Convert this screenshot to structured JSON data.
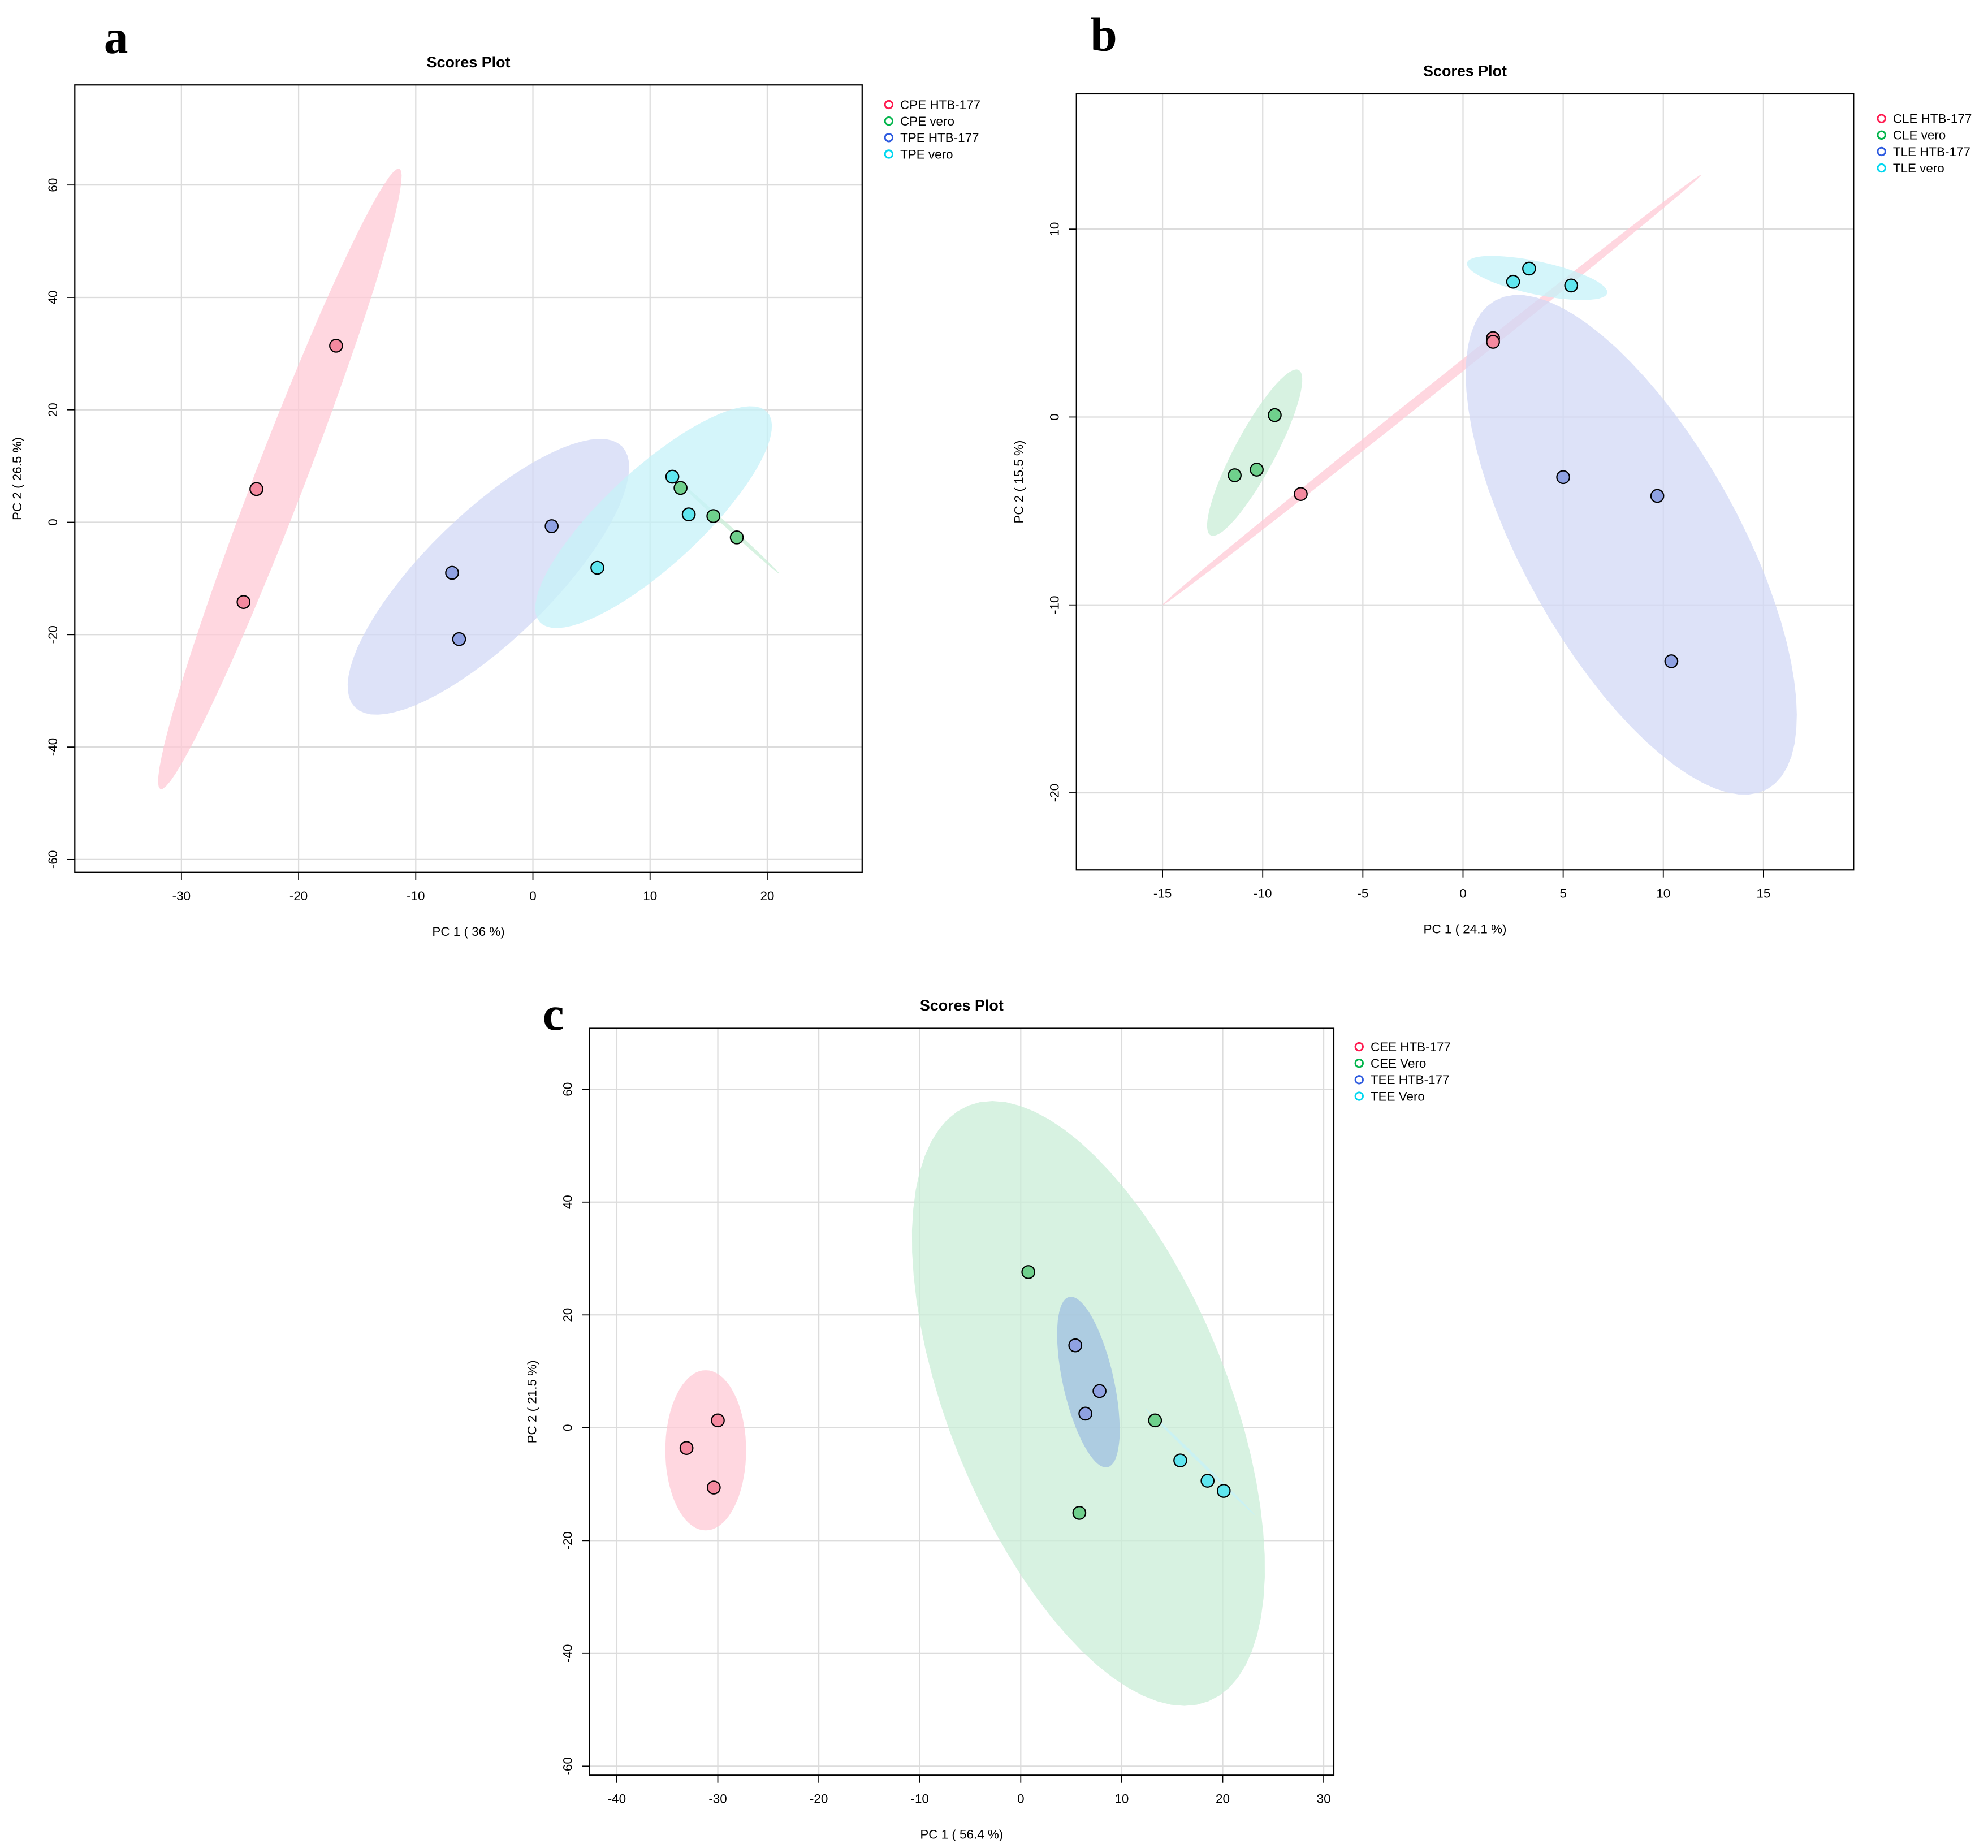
{
  "chart_data": [
    {
      "type": "scatter",
      "panel": "a",
      "title": "Scores Plot",
      "xlabel": "PC 1 ( 36 %)",
      "ylabel": "PC 2 ( 26.5 %)",
      "xlim": [
        -39.1,
        28.1
      ],
      "ylim": [
        -62.3,
        77.8
      ],
      "xticks": [
        -30,
        -20,
        -10,
        0,
        10,
        20
      ],
      "yticks": [
        -60,
        -40,
        -20,
        0,
        20,
        40,
        60
      ],
      "grid": true,
      "legend_position": "right",
      "series": [
        {
          "name": "CPE HTB-177",
          "color": "#ff1a4f",
          "fill": "#f4899f",
          "ellipse_fill": "#ffc9d5",
          "points": [
            [
              -16.8,
              31.4
            ],
            [
              -23.6,
              5.9
            ],
            [
              -24.7,
              -14.2
            ]
          ],
          "ellipse": {
            "center": [
              -21.6,
              7.7
            ],
            "u": [
              10.2,
              55.2
            ],
            "v": [
              2.0,
              -1.6
            ]
          }
        },
        {
          "name": "CPE vero",
          "color": "#00b44a",
          "fill": "#6fd08c",
          "ellipse_fill": "#c9eed7",
          "points": [
            [
              12.6,
              6.1
            ],
            [
              15.4,
              1.1
            ],
            [
              17.4,
              -2.7
            ]
          ],
          "ellipse": {
            "center": [
              16.5,
              -0.5
            ],
            "u": [
              4.5,
              -8.6
            ],
            "v": [
              0.2,
              0.1
            ]
          }
        },
        {
          "name": "TPE HTB-177",
          "color": "#2e5be0",
          "fill": "#8fa1e2",
          "ellipse_fill": "#d2d8f6",
          "points": [
            [
              1.6,
              -0.7
            ],
            [
              -6.9,
              -9.0
            ],
            [
              -6.3,
              -20.8
            ]
          ],
          "ellipse": {
            "center": [
              -3.8,
              -9.7
            ],
            "u": [
              11.4,
              23.2
            ],
            "v": [
              3.8,
              -8.0
            ]
          }
        },
        {
          "name": "TPE vero",
          "color": "#00d7f0",
          "fill": "#5fe6ef",
          "ellipse_fill": "#c6f1f8",
          "points": [
            [
              11.9,
              8.1
            ],
            [
              13.3,
              1.4
            ],
            [
              5.5,
              -8.1
            ]
          ],
          "ellipse": {
            "center": [
              10.3,
              0.9
            ],
            "u": [
              9.7,
              18.7
            ],
            "v": [
              2.8,
              -6.3
            ]
          }
        }
      ]
    },
    {
      "type": "scatter",
      "panel": "b",
      "title": "Scores Plot",
      "xlabel": "PC 1 ( 24.1 %)",
      "ylabel": "PC 2 ( 15.5 %)",
      "xlim": [
        -19.3,
        19.5
      ],
      "ylim": [
        -24.1,
        17.2
      ],
      "xticks": [
        -15,
        -10,
        -5,
        0,
        5,
        10,
        15
      ],
      "yticks": [
        -20,
        -10,
        0,
        10
      ],
      "grid": true,
      "legend_position": "right",
      "series": [
        {
          "name": "CLE HTB-177",
          "color": "#ff1a4f",
          "fill": "#f4899f",
          "ellipse_fill": "#ffc9d5",
          "points": [
            [
              1.5,
              4.2
            ],
            [
              1.5,
              4.0
            ],
            [
              -8.1,
              -4.1
            ]
          ],
          "ellipse": {
            "center": [
              -1.55,
              1.45
            ],
            "u": [
              13.45,
              11.45
            ],
            "v": [
              0.15,
              -0.2
            ]
          }
        },
        {
          "name": "CLE vero",
          "color": "#00b44a",
          "fill": "#6fd08c",
          "ellipse_fill": "#c9eed7",
          "points": [
            [
              -9.4,
              0.1
            ],
            [
              -11.4,
              -3.1
            ],
            [
              -10.3,
              -2.8
            ]
          ],
          "ellipse": {
            "center": [
              -10.4,
              -1.9
            ],
            "u": [
              2.2,
              4.4
            ],
            "v": [
              0.9,
              -0.5
            ]
          }
        },
        {
          "name": "TLE HTB-177",
          "color": "#2e5be0",
          "fill": "#8fa1e2",
          "ellipse_fill": "#d2d8f6",
          "points": [
            [
              5.0,
              -3.2
            ],
            [
              9.7,
              -4.2
            ],
            [
              10.4,
              -13.0
            ]
          ],
          "ellipse": {
            "center": [
              8.4,
              -6.8
            ],
            "u": [
              6.8,
              -13.0
            ],
            "v": [
              4.7,
              2.8
            ]
          }
        },
        {
          "name": "TLE vero",
          "color": "#00d7f0",
          "fill": "#5fe6ef",
          "ellipse_fill": "#c6f1f8",
          "points": [
            [
              2.5,
              7.2
            ],
            [
              3.3,
              7.9
            ],
            [
              5.4,
              7.0
            ]
          ],
          "ellipse": {
            "center": [
              3.7,
              7.4
            ],
            "u": [
              3.5,
              -0.8
            ],
            "v": [
              -0.17,
              -0.86
            ]
          }
        }
      ]
    },
    {
      "type": "scatter",
      "panel": "c",
      "title": "Scores Plot",
      "xlabel": "PC 1 ( 56.4 %)",
      "ylabel": "PC 2 ( 21.5 %)",
      "xlim": [
        -42.7,
        31.0
      ],
      "ylim": [
        -61.6,
        70.8
      ],
      "xticks": [
        -40,
        -30,
        -20,
        -10,
        0,
        10,
        20,
        30
      ],
      "yticks": [
        -60,
        -40,
        -20,
        0,
        20,
        40,
        60
      ],
      "grid": true,
      "legend_position": "right",
      "series": [
        {
          "name": "CEE HTB-177",
          "color": "#ff1a4f",
          "fill": "#f4899f",
          "ellipse_fill": "#ffc9d5",
          "points": [
            [
              -30.0,
              1.3
            ],
            [
              -33.1,
              -3.6
            ],
            [
              -30.4,
              -10.6
            ]
          ],
          "ellipse": {
            "center": [
              -31.2,
              -4.0
            ],
            "u": [
              0,
              14.2
            ],
            "v": [
              4.0,
              0
            ]
          }
        },
        {
          "name": "CEE Vero",
          "color": "#00b44a",
          "fill": "#6fd08c",
          "ellipse_fill": "#c9eed7",
          "points": [
            [
              0.75,
              27.6
            ],
            [
              13.3,
              1.3
            ],
            [
              5.8,
              -15.1
            ]
          ],
          "ellipse": {
            "center": [
              6.7,
              4.3
            ],
            "u": [
              -11.9,
              52.8
            ],
            "v": [
              12.8,
              9.3
            ]
          }
        },
        {
          "name": "TEE HTB-177",
          "color": "#2e5be0",
          "fill": "#8fa1e2",
          "ellipse_fill": "#9fbfe0",
          "points": [
            [
              5.4,
              14.6
            ],
            [
              7.8,
              6.5
            ],
            [
              6.4,
              2.5
            ]
          ],
          "ellipse": {
            "center": [
              6.7,
              8.1
            ],
            "u": [
              -1.9,
              15.1
            ],
            "v": [
              2.45,
              1.0
            ]
          }
        },
        {
          "name": "TEE Vero",
          "color": "#00d7f0",
          "fill": "#5fe6ef",
          "ellipse_fill": "#c6f1f8",
          "points": [
            [
              15.8,
              -5.8
            ],
            [
              18.5,
              -9.4
            ],
            [
              20.1,
              -11.2
            ]
          ],
          "ellipse": {
            "center": [
              17.8,
              -6.1
            ],
            "u": [
              5.4,
              -9.4
            ],
            "v": [
              0.15,
              0.1
            ]
          }
        }
      ]
    }
  ]
}
